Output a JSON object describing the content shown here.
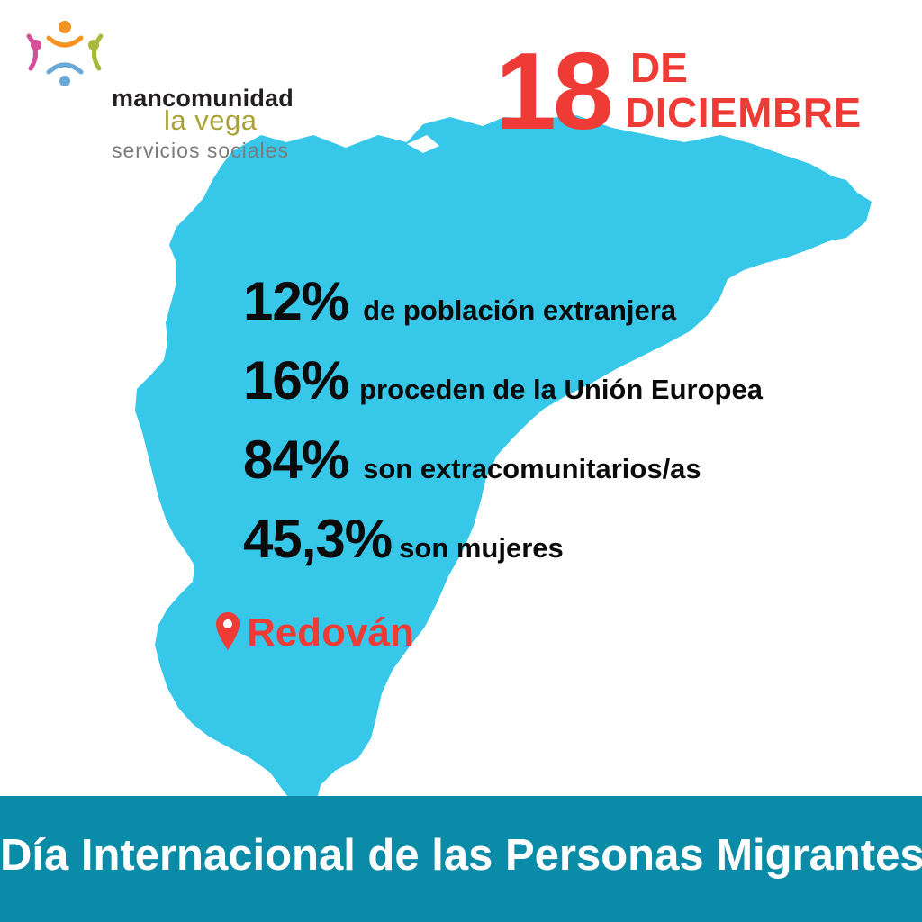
{
  "logo": {
    "line1_accent": "manco",
    "line1_rest": "munidad",
    "line2": "la vega",
    "line3": "servicios sociales"
  },
  "date": {
    "day": "18",
    "de": "DE",
    "month": "DICIEMBRE"
  },
  "stats": [
    {
      "percent": "12%",
      "text": "de población extranjera"
    },
    {
      "percent": "16%",
      "text": "proceden de la Unión Europea"
    },
    {
      "percent": "84%",
      "text": "son extracomunitarios/as"
    },
    {
      "percent": "45,3%",
      "text": "son mujeres"
    }
  ],
  "location": {
    "name": "Redován",
    "icon": "map-pin-icon"
  },
  "footer": {
    "title": "Día Internacional de las Personas Migrantes"
  },
  "colors": {
    "map": "#36c7e9",
    "accent_red": "#ef3b36",
    "footer_bg": "#0a8ba8",
    "logo_olive": "#a8a238"
  }
}
